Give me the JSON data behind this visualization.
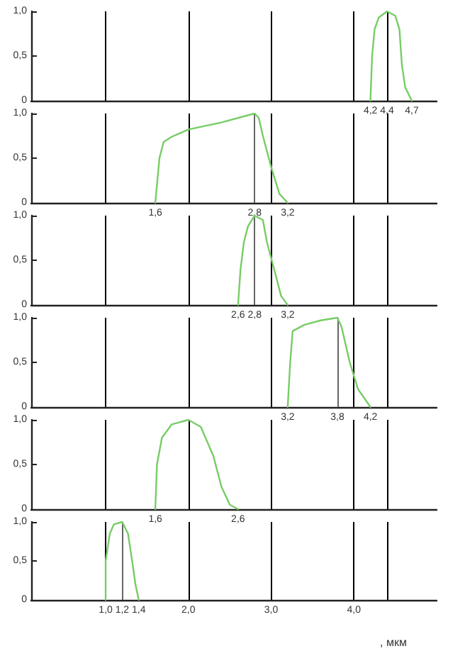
{
  "chart_data": [
    {
      "type": "line",
      "x": [
        4.2,
        4.22,
        4.25,
        4.3,
        4.4,
        4.5,
        4.55,
        4.58,
        4.62,
        4.7
      ],
      "series": [
        {
          "color": "#77cc66",
          "values": [
            0,
            0.5,
            0.8,
            0.93,
            1.0,
            0.95,
            0.8,
            0.4,
            0.15,
            0
          ]
        }
      ],
      "marker": "none",
      "xlim": [
        0.1,
        5.0
      ],
      "xticks": [
        {
          "value": 4.2,
          "label": "4,2"
        },
        {
          "value": 4.4,
          "label": "4,4"
        },
        {
          "value": 4.7,
          "label": "4,7"
        }
      ],
      "ylim": [
        0,
        1
      ],
      "yticks": [
        {
          "value": 0,
          "label": "0"
        },
        {
          "value": 0.5,
          "label": "0,5"
        },
        {
          "value": 1,
          "label": "1,0"
        }
      ],
      "ref_lines": [
        {
          "axis": "x",
          "value": 1.0,
          "color": "#000000"
        },
        {
          "axis": "x",
          "value": 2.0,
          "color": "#000000"
        },
        {
          "axis": "x",
          "value": 3.0,
          "color": "#000000"
        },
        {
          "axis": "x",
          "value": 4.0,
          "color": "#000000"
        },
        {
          "axis": "x",
          "value": 4.4,
          "color": "#000000"
        }
      ]
    },
    {
      "type": "line",
      "x": [
        1.6,
        1.65,
        1.7,
        1.8,
        2.0,
        2.4,
        2.8,
        2.85,
        2.9,
        3.0,
        3.1,
        3.2
      ],
      "series": [
        {
          "color": "#77cc66",
          "values": [
            0,
            0.5,
            0.68,
            0.74,
            0.82,
            0.9,
            1.0,
            0.95,
            0.75,
            0.4,
            0.1,
            0
          ]
        }
      ],
      "marker": "none",
      "xlim": [
        0.1,
        5.0
      ],
      "xticks": [
        {
          "value": 1.6,
          "label": "1,6"
        },
        {
          "value": 2.8,
          "label": "2,8"
        },
        {
          "value": 3.2,
          "label": "3,2"
        }
      ],
      "ylim": [
        0,
        1
      ],
      "yticks": [
        {
          "value": 0,
          "label": "0"
        },
        {
          "value": 0.5,
          "label": "0,5"
        },
        {
          "value": 1,
          "label": "1,0"
        }
      ],
      "ref_lines": [
        {
          "axis": "x",
          "value": 1.0,
          "color": "#000000"
        },
        {
          "axis": "x",
          "value": 2.0,
          "color": "#000000"
        },
        {
          "axis": "x",
          "value": 3.0,
          "color": "#000000"
        },
        {
          "axis": "x",
          "value": 4.0,
          "color": "#000000"
        },
        {
          "axis": "x",
          "value": 4.4,
          "color": "#000000"
        },
        {
          "axis": "x",
          "value": 2.8,
          "color": "#666666"
        }
      ]
    },
    {
      "type": "line",
      "x": [
        2.6,
        2.63,
        2.67,
        2.72,
        2.8,
        2.9,
        2.95,
        3.05,
        3.12,
        3.2
      ],
      "series": [
        {
          "color": "#77cc66",
          "values": [
            0,
            0.4,
            0.7,
            0.88,
            1.0,
            0.95,
            0.7,
            0.35,
            0.1,
            0
          ]
        }
      ],
      "marker": "none",
      "xlim": [
        0.1,
        5.0
      ],
      "xticks": [
        {
          "value": 2.6,
          "label": "2,6"
        },
        {
          "value": 2.8,
          "label": "2,8"
        },
        {
          "value": 3.2,
          "label": "3,2"
        }
      ],
      "ylim": [
        0,
        1
      ],
      "yticks": [
        {
          "value": 0,
          "label": "0"
        },
        {
          "value": 0.5,
          "label": "0,5"
        },
        {
          "value": 1,
          "label": "1,0"
        }
      ],
      "ref_lines": [
        {
          "axis": "x",
          "value": 1.0,
          "color": "#000000"
        },
        {
          "axis": "x",
          "value": 2.0,
          "color": "#000000"
        },
        {
          "axis": "x",
          "value": 3.0,
          "color": "#000000"
        },
        {
          "axis": "x",
          "value": 4.0,
          "color": "#000000"
        },
        {
          "axis": "x",
          "value": 4.4,
          "color": "#000000"
        },
        {
          "axis": "x",
          "value": 2.8,
          "color": "#666666"
        }
      ]
    },
    {
      "type": "line",
      "x": [
        3.2,
        3.23,
        3.26,
        3.4,
        3.6,
        3.8,
        3.85,
        3.95,
        4.05,
        4.2
      ],
      "series": [
        {
          "color": "#77cc66",
          "values": [
            0,
            0.5,
            0.85,
            0.92,
            0.97,
            1.0,
            0.9,
            0.5,
            0.2,
            0
          ]
        }
      ],
      "marker": "none",
      "xlim": [
        0.1,
        5.0
      ],
      "xticks": [
        {
          "value": 3.2,
          "label": "3,2"
        },
        {
          "value": 3.8,
          "label": "3,8"
        },
        {
          "value": 4.2,
          "label": "4,2"
        }
      ],
      "ylim": [
        0,
        1
      ],
      "yticks": [
        {
          "value": 0,
          "label": "0"
        },
        {
          "value": 0.5,
          "label": "0,5"
        },
        {
          "value": 1,
          "label": "1,0"
        }
      ],
      "ref_lines": [
        {
          "axis": "x",
          "value": 1.0,
          "color": "#000000"
        },
        {
          "axis": "x",
          "value": 2.0,
          "color": "#000000"
        },
        {
          "axis": "x",
          "value": 3.0,
          "color": "#000000"
        },
        {
          "axis": "x",
          "value": 4.0,
          "color": "#000000"
        },
        {
          "axis": "x",
          "value": 4.4,
          "color": "#000000"
        },
        {
          "axis": "x",
          "value": 3.8,
          "color": "#666666"
        }
      ]
    },
    {
      "type": "line",
      "x": [
        1.6,
        1.62,
        1.68,
        1.8,
        2.0,
        2.15,
        2.3,
        2.4,
        2.5,
        2.6
      ],
      "series": [
        {
          "color": "#77cc66",
          "values": [
            0,
            0.5,
            0.8,
            0.95,
            1.0,
            0.92,
            0.6,
            0.25,
            0.05,
            0
          ]
        }
      ],
      "marker": "none",
      "xlim": [
        0.1,
        5.0
      ],
      "xticks": [
        {
          "value": 1.6,
          "label": "1,6"
        },
        {
          "value": 2.6,
          "label": "2,6"
        }
      ],
      "ylim": [
        0,
        1
      ],
      "yticks": [
        {
          "value": 0,
          "label": "0"
        },
        {
          "value": 0.5,
          "label": "0,5"
        },
        {
          "value": 1,
          "label": "1,0"
        }
      ],
      "ref_lines": [
        {
          "axis": "x",
          "value": 1.0,
          "color": "#000000"
        },
        {
          "axis": "x",
          "value": 2.0,
          "color": "#000000"
        },
        {
          "axis": "x",
          "value": 3.0,
          "color": "#000000"
        },
        {
          "axis": "x",
          "value": 4.0,
          "color": "#000000"
        },
        {
          "axis": "x",
          "value": 4.4,
          "color": "#000000"
        }
      ]
    },
    {
      "type": "line",
      "x": [
        1.0,
        1.0,
        1.05,
        1.1,
        1.2,
        1.27,
        1.32,
        1.36,
        1.4
      ],
      "series": [
        {
          "color": "#77cc66",
          "values": [
            0,
            0.5,
            0.85,
            0.97,
            1.0,
            0.85,
            0.5,
            0.2,
            0
          ]
        }
      ],
      "marker": "none",
      "xlim": [
        0.1,
        5.0
      ],
      "xticks": [
        {
          "value": 1.0,
          "label": "1,0"
        },
        {
          "value": 1.2,
          "label": "1,2"
        },
        {
          "value": 1.4,
          "label": "1,4"
        },
        {
          "value": 2.0,
          "label": "2,0"
        },
        {
          "value": 3.0,
          "label": "3,0"
        },
        {
          "value": 4.0,
          "label": "4,0"
        }
      ],
      "xlabel": ", мкм",
      "ylim": [
        0,
        1
      ],
      "yticks": [
        {
          "value": 0,
          "label": "0"
        },
        {
          "value": 0.5,
          "label": "0,5"
        },
        {
          "value": 1,
          "label": "1,0"
        }
      ],
      "ref_lines": [
        {
          "axis": "x",
          "value": 1.0,
          "color": "#000000"
        },
        {
          "axis": "x",
          "value": 2.0,
          "color": "#000000"
        },
        {
          "axis": "x",
          "value": 3.0,
          "color": "#000000"
        },
        {
          "axis": "x",
          "value": 4.0,
          "color": "#000000"
        },
        {
          "axis": "x",
          "value": 4.4,
          "color": "#000000"
        },
        {
          "axis": "x",
          "value": 1.2,
          "color": "#666666"
        }
      ]
    }
  ]
}
